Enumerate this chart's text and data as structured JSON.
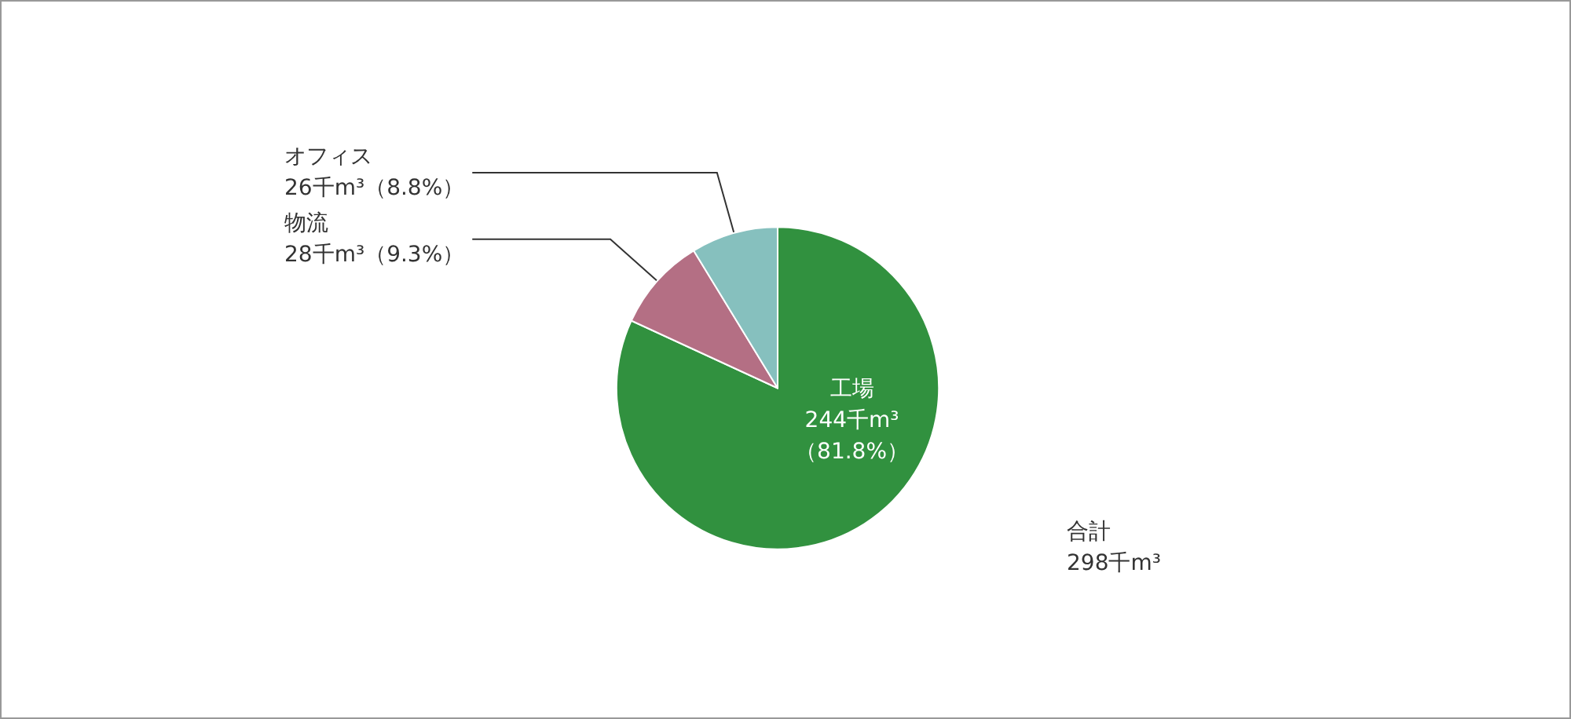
{
  "chart_data": {
    "type": "pie",
    "categories": [
      "工場",
      "物流",
      "オフィス"
    ],
    "values": [
      244,
      28,
      26
    ],
    "colors": [
      "#31913f",
      "#b46f84",
      "#86c0be"
    ],
    "value_labels": [
      "244千m³\n（81.8%）",
      "28千m³（9.3%）",
      "26千m³（8.8%）"
    ],
    "annotations": [
      "合計\n298千m³"
    ]
  }
}
